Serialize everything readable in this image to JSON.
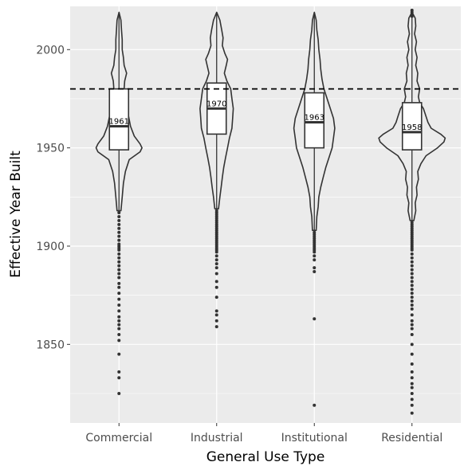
{
  "chart_data": {
    "type": "violin",
    "xlabel": "General Use Type",
    "ylabel": "Effective Year Built",
    "ylim": [
      1810,
      2022
    ],
    "y_ticks": [
      1850,
      1900,
      1950,
      2000
    ],
    "reference_line": {
      "y": 1980,
      "style": "dashed"
    },
    "grid": true,
    "background": "#ebebeb",
    "categories": [
      "Commercial",
      "Industrial",
      "Institutional",
      "Residential"
    ],
    "series": [
      {
        "category": "Commercial",
        "median": 1961,
        "median_label": "1961",
        "q1": 1949,
        "q3": 1980,
        "whisker_low": 1918,
        "whisker_high": 2019,
        "density": [
          [
            1918,
            0.03
          ],
          [
            1925,
            0.05
          ],
          [
            1932,
            0.07
          ],
          [
            1938,
            0.1
          ],
          [
            1944,
            0.16
          ],
          [
            1948,
            0.33
          ],
          [
            1950,
            0.36
          ],
          [
            1952,
            0.33
          ],
          [
            1956,
            0.24
          ],
          [
            1961,
            0.18
          ],
          [
            1966,
            0.15
          ],
          [
            1970,
            0.12
          ],
          [
            1975,
            0.09
          ],
          [
            1980,
            0.08
          ],
          [
            1984,
            0.09
          ],
          [
            1988,
            0.12
          ],
          [
            1992,
            0.08
          ],
          [
            1996,
            0.07
          ],
          [
            2000,
            0.05
          ],
          [
            2005,
            0.05
          ],
          [
            2010,
            0.04
          ],
          [
            2015,
            0.03
          ],
          [
            2019,
            0.0
          ]
        ],
        "outliers": [
          1825,
          1833,
          1836,
          1845,
          1852,
          1855,
          1858,
          1860,
          1862,
          1864,
          1867,
          1870,
          1873,
          1876,
          1879,
          1881,
          1884,
          1886,
          1888,
          1890,
          1892,
          1894,
          1896,
          1898,
          1899,
          1900,
          1901,
          1903,
          1905,
          1907,
          1909,
          1911,
          1913,
          1915,
          1917
        ]
      },
      {
        "category": "Industrial",
        "median": 1970,
        "median_label": "1970",
        "q1": 1957,
        "q3": 1983,
        "whisker_low": 1919,
        "whisker_high": 2019,
        "density": [
          [
            1919,
            0.03
          ],
          [
            1925,
            0.05
          ],
          [
            1930,
            0.07
          ],
          [
            1935,
            0.09
          ],
          [
            1940,
            0.11
          ],
          [
            1945,
            0.14
          ],
          [
            1950,
            0.17
          ],
          [
            1955,
            0.2
          ],
          [
            1960,
            0.24
          ],
          [
            1965,
            0.25
          ],
          [
            1970,
            0.26
          ],
          [
            1975,
            0.24
          ],
          [
            1980,
            0.22
          ],
          [
            1984,
            0.16
          ],
          [
            1988,
            0.12
          ],
          [
            1992,
            0.15
          ],
          [
            1995,
            0.17
          ],
          [
            1998,
            0.13
          ],
          [
            2002,
            0.09
          ],
          [
            2006,
            0.1
          ],
          [
            2010,
            0.08
          ],
          [
            2015,
            0.05
          ],
          [
            2019,
            0.0
          ]
        ],
        "outliers": [
          1859,
          1862,
          1865,
          1867,
          1874,
          1879,
          1882,
          1886,
          1889,
          1891,
          1893,
          1895,
          1897,
          1898,
          1899,
          1900,
          1901,
          1902,
          1903,
          1904,
          1905,
          1906,
          1907,
          1908,
          1909,
          1910,
          1911,
          1912,
          1913,
          1914,
          1915,
          1916,
          1917,
          1918
        ]
      },
      {
        "category": "Institutional",
        "median": 1963,
        "median_label": "1963",
        "q1": 1950,
        "q3": 1978,
        "whisker_low": 1908,
        "whisker_high": 2019,
        "density": [
          [
            1908,
            0.03
          ],
          [
            1915,
            0.04
          ],
          [
            1920,
            0.06
          ],
          [
            1925,
            0.07
          ],
          [
            1930,
            0.1
          ],
          [
            1935,
            0.14
          ],
          [
            1940,
            0.18
          ],
          [
            1945,
            0.23
          ],
          [
            1950,
            0.28
          ],
          [
            1955,
            0.3
          ],
          [
            1960,
            0.32
          ],
          [
            1965,
            0.3
          ],
          [
            1970,
            0.25
          ],
          [
            1975,
            0.2
          ],
          [
            1980,
            0.15
          ],
          [
            1985,
            0.12
          ],
          [
            1990,
            0.1
          ],
          [
            1995,
            0.09
          ],
          [
            2000,
            0.07
          ],
          [
            2005,
            0.06
          ],
          [
            2010,
            0.04
          ],
          [
            2015,
            0.03
          ],
          [
            2019,
            0.0
          ]
        ],
        "outliers": [
          1819,
          1863,
          1887,
          1889,
          1893,
          1895,
          1897,
          1898,
          1899,
          1900,
          1901,
          1902,
          1903,
          1904,
          1905,
          1906,
          1907
        ]
      },
      {
        "category": "Residential",
        "median": 1958,
        "median_label": "1958",
        "q1": 1949,
        "q3": 1973,
        "whisker_low": 1913,
        "whisker_high": 2019,
        "density": [
          [
            1913,
            0.03
          ],
          [
            1918,
            0.06
          ],
          [
            1922,
            0.05
          ],
          [
            1926,
            0.08
          ],
          [
            1930,
            0.07
          ],
          [
            1934,
            0.1
          ],
          [
            1938,
            0.09
          ],
          [
            1942,
            0.14
          ],
          [
            1946,
            0.22
          ],
          [
            1950,
            0.4
          ],
          [
            1953,
            0.5
          ],
          [
            1955,
            0.52
          ],
          [
            1957,
            0.45
          ],
          [
            1960,
            0.3
          ],
          [
            1963,
            0.25
          ],
          [
            1966,
            0.22
          ],
          [
            1970,
            0.18
          ],
          [
            1973,
            0.12
          ],
          [
            1976,
            0.1
          ],
          [
            1980,
            0.12
          ],
          [
            1984,
            0.08
          ],
          [
            1988,
            0.09
          ],
          [
            1992,
            0.06
          ],
          [
            1996,
            0.08
          ],
          [
            2000,
            0.05
          ],
          [
            2004,
            0.07
          ],
          [
            2008,
            0.04
          ],
          [
            2012,
            0.06
          ],
          [
            2016,
            0.05
          ],
          [
            2019,
            0.0
          ]
        ],
        "outliers": [
          1815,
          1819,
          1822,
          1825,
          1828,
          1830,
          1833,
          1836,
          1840,
          1845,
          1850,
          1855,
          1858,
          1860,
          1862,
          1865,
          1868,
          1870,
          1872,
          1874,
          1876,
          1878,
          1880,
          1882,
          1884,
          1886,
          1888,
          1890,
          1892,
          1894,
          1896,
          1898,
          1899,
          1900,
          1901,
          1902,
          1903,
          1904,
          1905,
          1906,
          1907,
          1908,
          1909,
          1910,
          1911,
          1912,
          2017,
          2018,
          2019,
          2020
        ]
      }
    ]
  }
}
